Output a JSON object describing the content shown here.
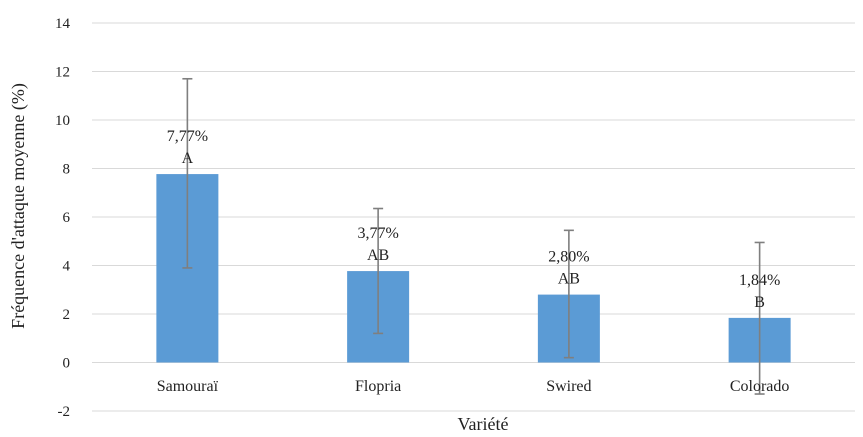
{
  "chart_data": {
    "type": "bar",
    "title": "",
    "xlabel": "Variété",
    "ylabel": "Fréquence d'attaque moyenne (%)",
    "ylim": [
      -2,
      14
    ],
    "yticks": [
      -2,
      0,
      2,
      4,
      6,
      8,
      10,
      12,
      14
    ],
    "grid": true,
    "bar_color": "#5b9bd5",
    "error_color": "#7f7f7f",
    "categories": [
      "Samouraï",
      "Flopria",
      "Swired",
      "Colorado"
    ],
    "values": [
      7.77,
      3.77,
      2.8,
      1.84
    ],
    "error_low": [
      3.9,
      1.2,
      0.2,
      -1.3
    ],
    "error_high": [
      11.7,
      6.35,
      5.45,
      4.95
    ],
    "value_labels": [
      "7,77%",
      "3,77%",
      "2,80%",
      "1,84%"
    ],
    "group_labels": [
      "A",
      "AB",
      "AB",
      "B"
    ]
  }
}
